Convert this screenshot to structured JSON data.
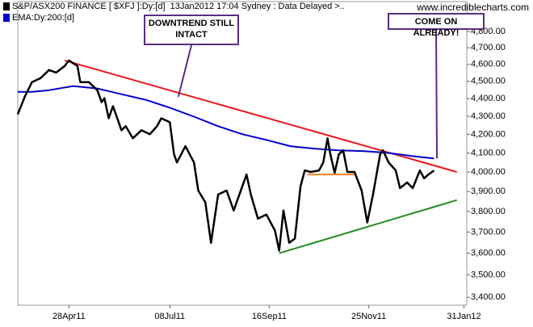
{
  "chart_data": {
    "type": "line",
    "log_scale": true,
    "watermark": "www.incrediblecharts.com",
    "xlim": [
      "2011-03-23",
      "2012-02-02"
    ],
    "ylim": [
      3365,
      4990
    ],
    "xticks": [
      {
        "value": "2011-04-28",
        "label": "28Apr11"
      },
      {
        "value": "2011-07-08",
        "label": "08Jul11"
      },
      {
        "value": "2011-09-16",
        "label": "16Sep11"
      },
      {
        "value": "2011-11-25",
        "label": "25Nov11"
      },
      {
        "value": "2012-01-31",
        "label": "31Jan12"
      }
    ],
    "yticks": [
      {
        "value": 3400,
        "label": "3,400.00"
      },
      {
        "value": 3500,
        "label": "3,500.00"
      },
      {
        "value": 3600,
        "label": "3,600.00"
      },
      {
        "value": 3700,
        "label": "3,700.00"
      },
      {
        "value": 3800,
        "label": "3,800.00"
      },
      {
        "value": 3900,
        "label": "3,900.00"
      },
      {
        "value": 4000,
        "label": "4,000.00"
      },
      {
        "value": 4100,
        "label": "4,100.00"
      },
      {
        "value": 4200,
        "label": "4,200.00"
      },
      {
        "value": 4300,
        "label": "4,300.00"
      },
      {
        "value": 4400,
        "label": "4,400.00"
      },
      {
        "value": 4500,
        "label": "4,500.00"
      },
      {
        "value": 4600,
        "label": "4,600.00"
      },
      {
        "value": 4700,
        "label": "4,700.00"
      },
      {
        "value": 4800,
        "label": "4,800.00"
      }
    ],
    "series": [
      {
        "name": "S&P/ASX200 FINANCE [ $XFJ ]:Dy:[d]  13Jan2012 17:04 Sydney : Data Delayed >..",
        "color": "#000000",
        "x": [
          "2011-03-23",
          "2011-03-28",
          "2011-04-02",
          "2011-04-08",
          "2011-04-14",
          "2011-04-19",
          "2011-04-25",
          "2011-04-28",
          "2011-05-04",
          "2011-05-06",
          "2011-05-12",
          "2011-05-18",
          "2011-05-21",
          "2011-05-23",
          "2011-05-26",
          "2011-05-29",
          "2011-06-04",
          "2011-06-07",
          "2011-06-12",
          "2011-06-18",
          "2011-06-24",
          "2011-06-29",
          "2011-07-02",
          "2011-07-08",
          "2011-07-11",
          "2011-07-13",
          "2011-07-19",
          "2011-07-25",
          "2011-07-28",
          "2011-08-02",
          "2011-08-06",
          "2011-08-11",
          "2011-08-17",
          "2011-08-22",
          "2011-08-28",
          "2011-08-31",
          "2011-09-03",
          "2011-09-08",
          "2011-09-14",
          "2011-09-20",
          "2011-09-23",
          "2011-09-26",
          "2011-09-30",
          "2011-10-04",
          "2011-10-08",
          "2011-10-11",
          "2011-10-15",
          "2011-10-21",
          "2011-10-24",
          "2011-10-27",
          "2011-10-29",
          "2011-11-01",
          "2011-11-04",
          "2011-11-07",
          "2011-11-10",
          "2011-11-15",
          "2011-11-20",
          "2011-11-24",
          "2011-11-28",
          "2011-12-03",
          "2011-12-05",
          "2011-12-09",
          "2011-12-14",
          "2011-12-17",
          "2011-12-22",
          "2011-12-26",
          "2011-12-31",
          "2012-01-03",
          "2012-01-06",
          "2012-01-10"
        ],
        "values": [
          4311,
          4412,
          4495,
          4518,
          4566,
          4551,
          4590,
          4623,
          4590,
          4495,
          4495,
          4448,
          4379,
          4402,
          4289,
          4357,
          4223,
          4245,
          4179,
          4223,
          4201,
          4245,
          4289,
          4267,
          4093,
          4050,
          4136,
          4050,
          3905,
          3845,
          3649,
          3885,
          3905,
          3805,
          3926,
          3987,
          3885,
          3765,
          3785,
          3707,
          3612,
          3805,
          3649,
          3669,
          3926,
          4008,
          4000,
          4008,
          4050,
          4179,
          4093,
          3996,
          4093,
          4114,
          4000,
          4000,
          3905,
          3746,
          3885,
          4093,
          4114,
          4050,
          4008,
          3917,
          3946,
          3917,
          4008,
          3967,
          3987,
          4008
        ]
      },
      {
        "name": "EMA:Dy:200:[d]",
        "color": "#0000cc",
        "x": [
          "2011-03-23",
          "2011-04-02",
          "2011-04-14",
          "2011-05-01",
          "2011-05-18",
          "2011-06-04",
          "2011-06-21",
          "2011-07-08",
          "2011-07-25",
          "2011-08-11",
          "2011-08-28",
          "2011-09-14",
          "2011-10-01",
          "2011-10-18",
          "2011-11-04",
          "2011-11-21",
          "2011-12-08",
          "2011-12-25",
          "2012-01-10"
        ],
        "values": [
          4439,
          4439,
          4448,
          4472,
          4458,
          4425,
          4393,
          4348,
          4298,
          4245,
          4201,
          4170,
          4136,
          4123,
          4114,
          4110,
          4101,
          4084,
          4071
        ]
      }
    ],
    "trendlines": [
      {
        "color": "#e8141c",
        "x": [
          "2011-04-25",
          "2012-01-26"
        ],
        "values": [
          4623,
          4000
        ]
      },
      {
        "color": "#228b22",
        "x": [
          "2011-09-23",
          "2012-01-26"
        ],
        "values": [
          3600,
          3857
        ]
      },
      {
        "color": "#f08020",
        "x": [
          "2011-10-13",
          "2011-11-15"
        ],
        "values": [
          3987,
          3987
        ]
      }
    ],
    "annotations": [
      {
        "text": "DOWNTREND STILL INTACT",
        "x": "2011-07-14",
        "value": 4410
      },
      {
        "text": "COME ON ALREADY!",
        "x": "2012-01-12",
        "value": 4071
      }
    ]
  }
}
